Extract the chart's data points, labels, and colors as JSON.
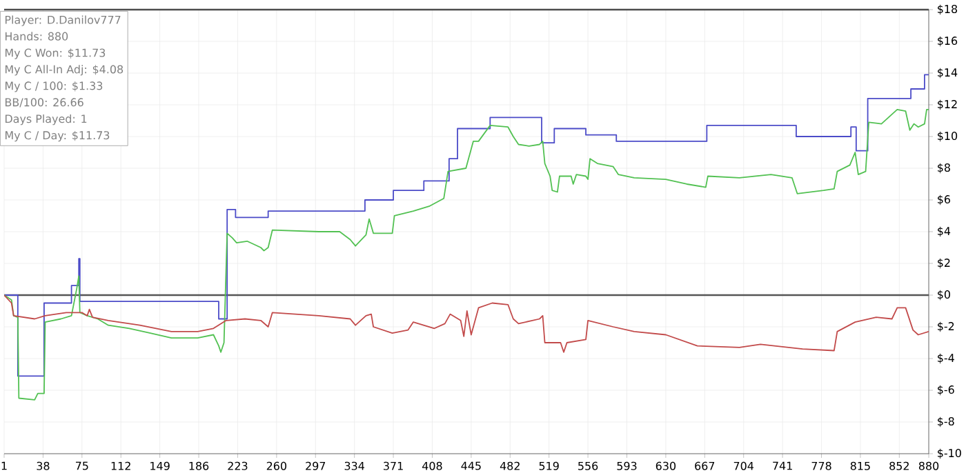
{
  "chart_data": {
    "type": "line",
    "annotations": [
      "Player: D.Danilov777",
      "Hands: 880",
      "My C Won: $11.73",
      "My C All-In Adj: $4.08",
      "My C / 100: $1.33",
      "BB/100: 26.66",
      "Days Played: 1",
      "My C / Day: $11.73"
    ],
    "xlim": [
      1,
      880
    ],
    "xticks": [
      1,
      38,
      75,
      112,
      149,
      186,
      223,
      260,
      297,
      334,
      371,
      408,
      445,
      482,
      519,
      556,
      593,
      630,
      667,
      704,
      741,
      778,
      815,
      852,
      880
    ],
    "ylim": [
      -10,
      18
    ],
    "yticks": [
      {
        "value": -10,
        "label": "$-10"
      },
      {
        "value": -8,
        "label": "$-8"
      },
      {
        "value": -6,
        "label": "$-6"
      },
      {
        "value": -4,
        "label": "$-4"
      },
      {
        "value": -2,
        "label": "$-2"
      },
      {
        "value": 0,
        "label": "$0"
      },
      {
        "value": 2,
        "label": "$2"
      },
      {
        "value": 4,
        "label": "$4"
      },
      {
        "value": 6,
        "label": "$6"
      },
      {
        "value": 8,
        "label": "$8"
      },
      {
        "value": 10,
        "label": "$10"
      },
      {
        "value": 12,
        "label": "$12"
      },
      {
        "value": 14,
        "label": "$14"
      },
      {
        "value": 16,
        "label": "$16"
      },
      {
        "value": 18,
        "label": "$18"
      }
    ],
    "grid": true,
    "ref_lines": [
      {
        "axis": "y",
        "value": 0,
        "color": "#555555"
      }
    ],
    "series": [
      {
        "type": "step",
        "color": "#4b4bc8",
        "x": [
          1,
          14,
          39,
          65,
          72,
          73,
          205,
          213,
          221,
          252,
          344,
          371,
          400,
          424,
          432,
          463,
          512,
          524,
          554,
          583,
          669,
          754,
          806,
          811,
          822,
          863,
          876,
          880
        ],
        "values": [
          0,
          -5.1,
          -0.5,
          0.6,
          2.3,
          -0.4,
          -1.5,
          5.4,
          4.9,
          5.3,
          6.0,
          6.6,
          7.2,
          8.6,
          10.5,
          11.2,
          9.6,
          10.5,
          10.1,
          9.7,
          10.7,
          10.0,
          10.6,
          9.1,
          12.4,
          13.0,
          13.9,
          13.9
        ]
      },
      {
        "color": "#52c152",
        "x": [
          1,
          8,
          10,
          14,
          15,
          30,
          33,
          39,
          40,
          55,
          65,
          70,
          72,
          73,
          80,
          90,
          100,
          120,
          140,
          160,
          185,
          200,
          205,
          207,
          210,
          213,
          218,
          222,
          232,
          245,
          248,
          252,
          256,
          300,
          320,
          330,
          335,
          345,
          348,
          352,
          370,
          372,
          390,
          405,
          419,
          423,
          440,
          447,
          452,
          463,
          480,
          485,
          490,
          500,
          510,
          513,
          515,
          520,
          522,
          527,
          529,
          540,
          542,
          545,
          554,
          556,
          558,
          565,
          580,
          585,
          600,
          630,
          650,
          668,
          670,
          700,
          730,
          750,
          755,
          780,
          790,
          793,
          805,
          810,
          813,
          820,
          823,
          835,
          850,
          858,
          862,
          866,
          870,
          876,
          878,
          880
        ],
        "values": [
          0,
          -0.3,
          -1.3,
          -1.4,
          -6.5,
          -6.6,
          -6.2,
          -6.2,
          -1.7,
          -1.5,
          -1.3,
          0.4,
          1.2,
          -1.1,
          -1.3,
          -1.5,
          -1.9,
          -2.1,
          -2.4,
          -2.7,
          -2.7,
          -2.5,
          -3.2,
          -3.6,
          -3.0,
          3.9,
          3.6,
          3.3,
          3.4,
          3.0,
          2.8,
          3.0,
          4.1,
          4.0,
          4.0,
          3.5,
          3.1,
          3.8,
          4.8,
          3.9,
          3.9,
          5.0,
          5.3,
          5.6,
          6.1,
          7.8,
          8.0,
          9.7,
          9.7,
          10.7,
          10.6,
          10.0,
          9.5,
          9.4,
          9.5,
          9.7,
          8.3,
          7.5,
          6.6,
          6.5,
          7.5,
          7.5,
          7.0,
          7.6,
          7.5,
          7.3,
          8.6,
          8.3,
          8.1,
          7.6,
          7.4,
          7.3,
          7.0,
          6.8,
          7.5,
          7.4,
          7.6,
          7.4,
          6.4,
          6.6,
          6.7,
          7.8,
          8.2,
          9.0,
          7.6,
          7.8,
          10.9,
          10.8,
          11.7,
          11.6,
          10.4,
          10.8,
          10.6,
          10.8,
          11.7,
          11.7
        ]
      },
      {
        "color": "#c24a4a",
        "x": [
          1,
          8,
          10,
          30,
          40,
          60,
          75,
          80,
          82,
          85,
          100,
          130,
          160,
          185,
          200,
          212,
          230,
          245,
          252,
          256,
          300,
          330,
          335,
          345,
          350,
          352,
          370,
          385,
          390,
          410,
          420,
          425,
          435,
          438,
          441,
          445,
          452,
          465,
          480,
          485,
          490,
          510,
          513,
          515,
          530,
          533,
          536,
          554,
          556,
          580,
          600,
          630,
          660,
          700,
          720,
          760,
          790,
          793,
          810,
          830,
          845,
          850,
          858,
          865,
          870,
          880
        ],
        "values": [
          0,
          -0.5,
          -1.3,
          -1.5,
          -1.3,
          -1.1,
          -1.1,
          -1.3,
          -0.9,
          -1.4,
          -1.6,
          -1.9,
          -2.3,
          -2.3,
          -2.1,
          -1.6,
          -1.5,
          -1.6,
          -2.0,
          -1.1,
          -1.3,
          -1.5,
          -1.9,
          -1.3,
          -1.2,
          -2.0,
          -2.4,
          -2.2,
          -1.7,
          -2.1,
          -1.8,
          -1.2,
          -1.6,
          -2.6,
          -1.0,
          -2.5,
          -0.8,
          -0.5,
          -0.6,
          -1.5,
          -1.8,
          -1.5,
          -1.3,
          -3.0,
          -3.0,
          -3.6,
          -3.0,
          -2.8,
          -1.6,
          -2.0,
          -2.3,
          -2.5,
          -3.2,
          -3.3,
          -3.1,
          -3.4,
          -3.5,
          -2.3,
          -1.7,
          -1.4,
          -1.5,
          -0.8,
          -0.8,
          -2.2,
          -2.5,
          -2.3
        ]
      }
    ]
  }
}
